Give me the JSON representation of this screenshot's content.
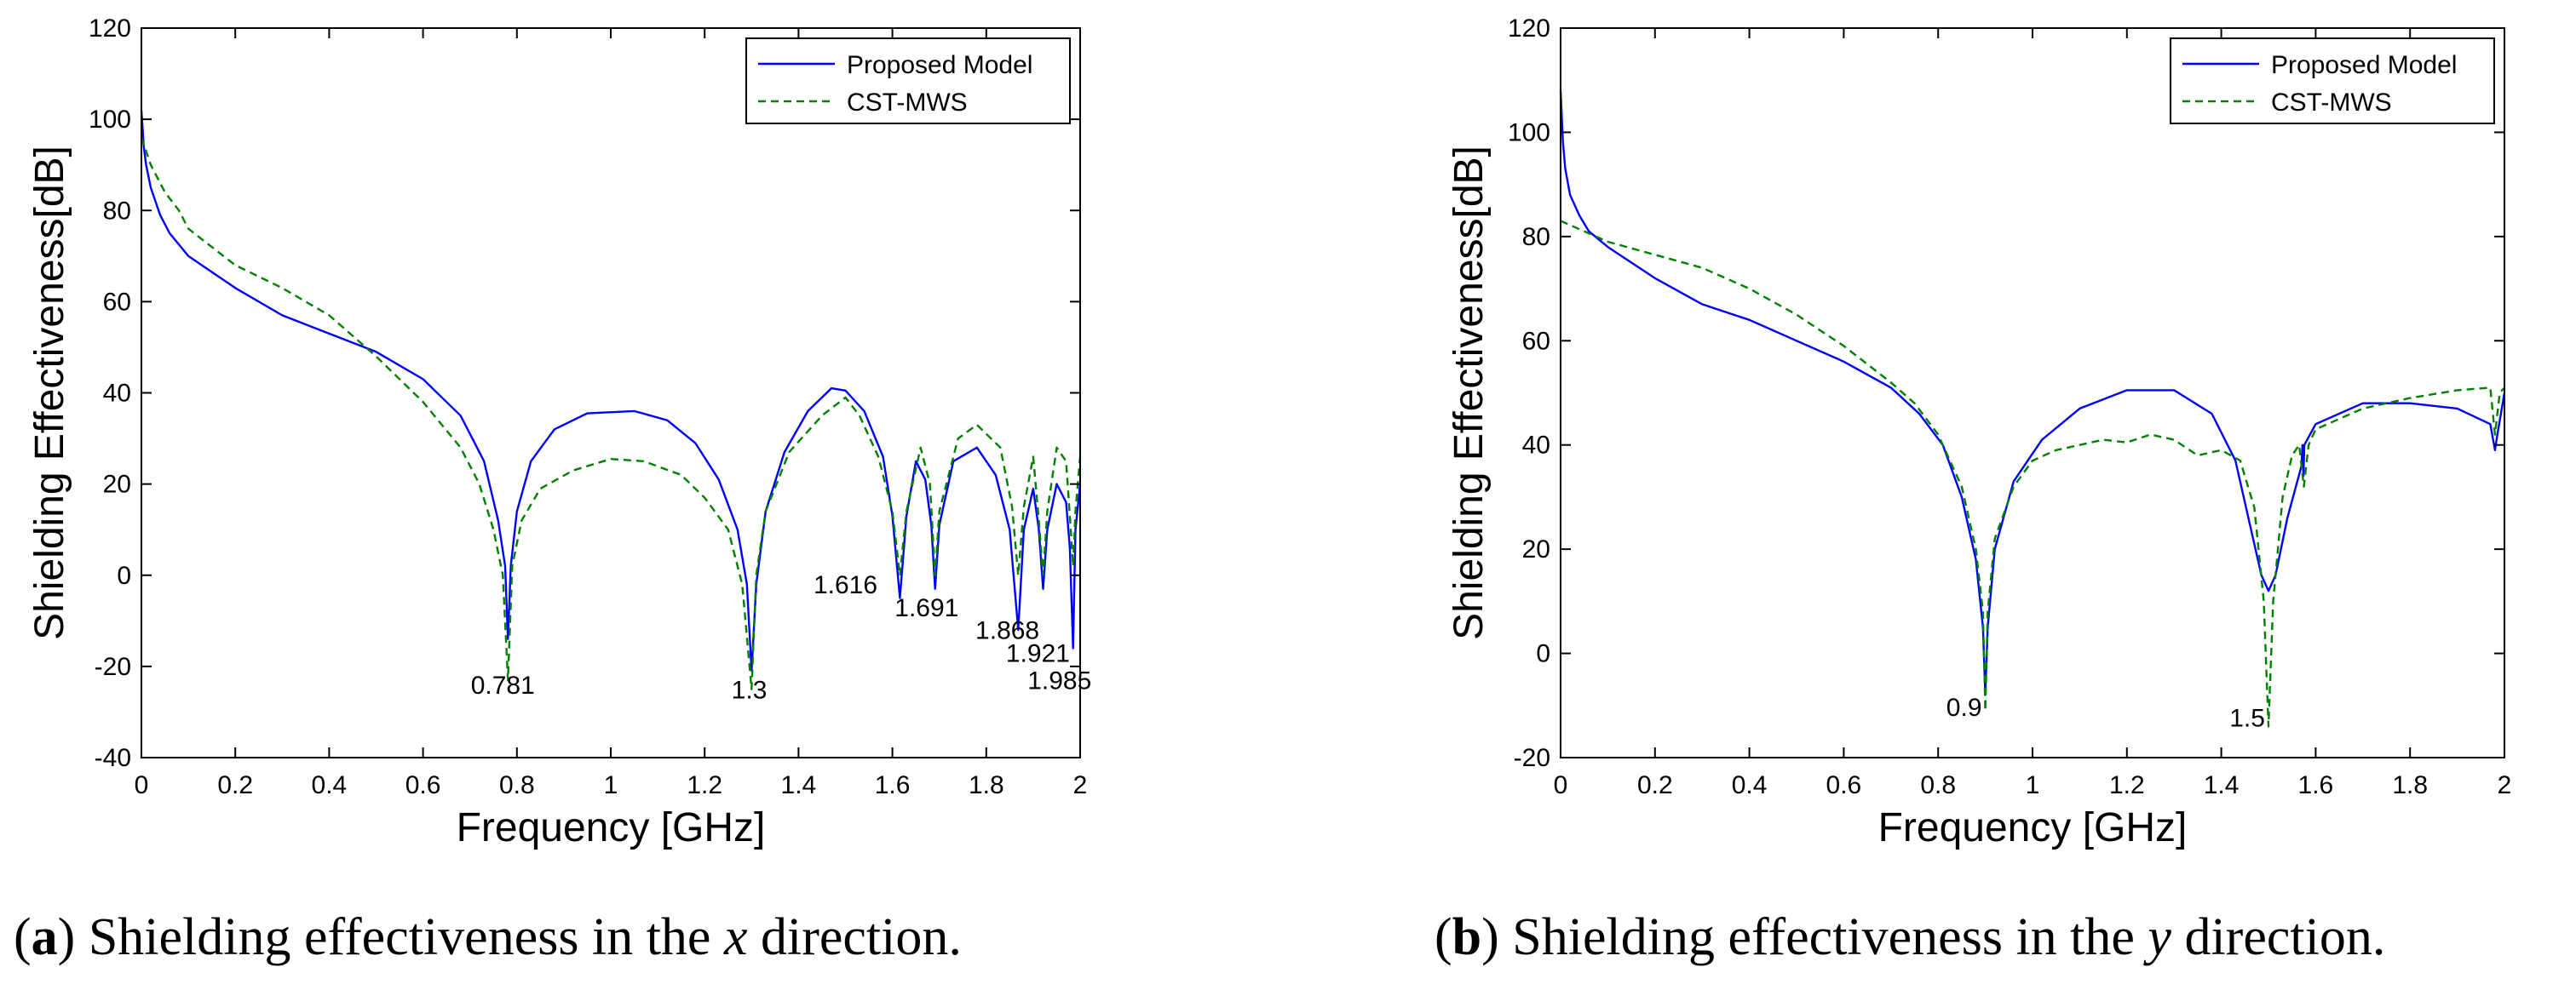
{
  "chart_data": [
    {
      "type": "line",
      "panel": "a",
      "xlabel": "Frequency [GHz]",
      "ylabel": "Shielding Effectiveness[dB]",
      "xlim": [
        0,
        2
      ],
      "ylim": [
        -40,
        120
      ],
      "xticks": [
        0,
        0.2,
        0.4,
        0.6,
        0.8,
        1,
        1.2,
        1.4,
        1.6,
        1.8,
        2
      ],
      "xtick_labels": [
        "0",
        "0.2",
        "0.4",
        "0.6",
        "0.8",
        "1",
        "1.2",
        "1.4",
        "1.6",
        "1.8",
        "2"
      ],
      "yticks": [
        -40,
        -20,
        0,
        20,
        40,
        60,
        80,
        100,
        120
      ],
      "ytick_labels": [
        "-40",
        "-20",
        "0",
        "20",
        "40",
        "60",
        "80",
        "100",
        "120"
      ],
      "legend_position": "top-right",
      "series": [
        {
          "name": "Proposed Model",
          "color": "#0000ff",
          "style": "solid",
          "points": [
            [
              0,
              102
            ],
            [
              0.005,
              94
            ],
            [
              0.01,
              90
            ],
            [
              0.02,
              85
            ],
            [
              0.04,
              79
            ],
            [
              0.06,
              75
            ],
            [
              0.1,
              70
            ],
            [
              0.2,
              63
            ],
            [
              0.3,
              57
            ],
            [
              0.4,
              53
            ],
            [
              0.5,
              49
            ],
            [
              0.6,
              43
            ],
            [
              0.68,
              35
            ],
            [
              0.73,
              25
            ],
            [
              0.76,
              12
            ],
            [
              0.775,
              2
            ],
            [
              0.781,
              -14
            ],
            [
              0.787,
              2
            ],
            [
              0.8,
              14
            ],
            [
              0.83,
              25
            ],
            [
              0.88,
              32
            ],
            [
              0.95,
              35.5
            ],
            [
              1.05,
              36
            ],
            [
              1.12,
              34
            ],
            [
              1.18,
              29
            ],
            [
              1.23,
              21
            ],
            [
              1.27,
              10
            ],
            [
              1.29,
              -2
            ],
            [
              1.3,
              -21
            ],
            [
              1.31,
              -2
            ],
            [
              1.33,
              14
            ],
            [
              1.37,
              27
            ],
            [
              1.42,
              36
            ],
            [
              1.47,
              41
            ],
            [
              1.5,
              40.5
            ],
            [
              1.54,
              36
            ],
            [
              1.58,
              26
            ],
            [
              1.6,
              13
            ],
            [
              1.616,
              -5
            ],
            [
              1.63,
              13
            ],
            [
              1.65,
              25
            ],
            [
              1.67,
              21
            ],
            [
              1.683,
              11
            ],
            [
              1.691,
              -3
            ],
            [
              1.7,
              11
            ],
            [
              1.73,
              25
            ],
            [
              1.78,
              28
            ],
            [
              1.82,
              22
            ],
            [
              1.85,
              10
            ],
            [
              1.868,
              -12
            ],
            [
              1.88,
              10
            ],
            [
              1.9,
              19
            ],
            [
              1.912,
              10
            ],
            [
              1.921,
              -3
            ],
            [
              1.93,
              10
            ],
            [
              1.95,
              20
            ],
            [
              1.97,
              16
            ],
            [
              1.978,
              6
            ],
            [
              1.985,
              -16
            ],
            [
              1.99,
              10
            ],
            [
              2,
              20
            ]
          ]
        },
        {
          "name": "CST-MWS",
          "color": "#008000",
          "style": "dashed",
          "points": [
            [
              0,
              96
            ],
            [
              0.02,
              90
            ],
            [
              0.05,
              84
            ],
            [
              0.08,
              80
            ],
            [
              0.1,
              76
            ],
            [
              0.15,
              72
            ],
            [
              0.2,
              68
            ],
            [
              0.3,
              63
            ],
            [
              0.4,
              57
            ],
            [
              0.5,
              48
            ],
            [
              0.6,
              38
            ],
            [
              0.68,
              28
            ],
            [
              0.72,
              20
            ],
            [
              0.75,
              10
            ],
            [
              0.77,
              0
            ],
            [
              0.781,
              -23
            ],
            [
              0.79,
              2
            ],
            [
              0.81,
              12
            ],
            [
              0.85,
              19
            ],
            [
              0.92,
              23
            ],
            [
              1.0,
              25.5
            ],
            [
              1.07,
              25
            ],
            [
              1.15,
              22
            ],
            [
              1.2,
              17
            ],
            [
              1.25,
              10
            ],
            [
              1.28,
              -2
            ],
            [
              1.3,
              -25
            ],
            [
              1.31,
              0
            ],
            [
              1.33,
              14
            ],
            [
              1.38,
              27
            ],
            [
              1.45,
              35
            ],
            [
              1.5,
              39
            ],
            [
              1.53,
              35
            ],
            [
              1.57,
              26
            ],
            [
              1.6,
              14
            ],
            [
              1.616,
              0
            ],
            [
              1.63,
              14
            ],
            [
              1.66,
              28
            ],
            [
              1.68,
              20
            ],
            [
              1.691,
              0
            ],
            [
              1.7,
              14
            ],
            [
              1.74,
              30
            ],
            [
              1.78,
              33
            ],
            [
              1.83,
              28
            ],
            [
              1.855,
              15
            ],
            [
              1.868,
              0
            ],
            [
              1.88,
              15
            ],
            [
              1.9,
              26
            ],
            [
              1.912,
              12
            ],
            [
              1.921,
              0
            ],
            [
              1.93,
              14
            ],
            [
              1.95,
              28
            ],
            [
              1.97,
              25
            ],
            [
              1.98,
              10
            ],
            [
              1.985,
              2
            ],
            [
              1.99,
              14
            ],
            [
              2,
              26
            ]
          ]
        }
      ],
      "annotations": [
        {
          "text": "0.781",
          "x": 0.77,
          "y": -26
        },
        {
          "text": "1.3",
          "x": 1.295,
          "y": -27
        },
        {
          "text": "1.616",
          "x": 1.5,
          "y": -4
        },
        {
          "text": "1.691",
          "x": 1.673,
          "y": -9
        },
        {
          "text": "1.868",
          "x": 1.845,
          "y": -14
        },
        {
          "text": "1.921",
          "x": 1.91,
          "y": -19
        },
        {
          "text": "1.985",
          "x": 1.956,
          "y": -25
        }
      ]
    },
    {
      "type": "line",
      "panel": "b",
      "xlabel": "Frequency [GHz]",
      "ylabel": "Shielding Effectiveness[dB]",
      "xlim": [
        0,
        2
      ],
      "ylim": [
        -20,
        120
      ],
      "xticks": [
        0,
        0.2,
        0.4,
        0.6,
        0.8,
        1,
        1.2,
        1.4,
        1.6,
        1.8,
        2
      ],
      "xtick_labels": [
        "0",
        "0.2",
        "0.4",
        "0.6",
        "0.8",
        "1",
        "1.2",
        "1.4",
        "1.6",
        "1.8",
        "2"
      ],
      "yticks": [
        -20,
        0,
        20,
        40,
        60,
        80,
        100,
        120
      ],
      "ytick_labels": [
        "-20",
        "0",
        "20",
        "40",
        "60",
        "80",
        "100",
        "120"
      ],
      "legend_position": "top-right",
      "series": [
        {
          "name": "Proposed Model",
          "color": "#0000ff",
          "style": "solid",
          "points": [
            [
              0,
              108
            ],
            [
              0.005,
              98
            ],
            [
              0.01,
              93
            ],
            [
              0.02,
              88
            ],
            [
              0.04,
              84
            ],
            [
              0.06,
              81
            ],
            [
              0.1,
              78
            ],
            [
              0.2,
              72
            ],
            [
              0.3,
              67
            ],
            [
              0.4,
              64
            ],
            [
              0.5,
              60
            ],
            [
              0.6,
              56
            ],
            [
              0.7,
              51
            ],
            [
              0.76,
              46
            ],
            [
              0.81,
              40
            ],
            [
              0.85,
              30
            ],
            [
              0.88,
              18
            ],
            [
              0.895,
              5
            ],
            [
              0.9,
              -8
            ],
            [
              0.905,
              5
            ],
            [
              0.92,
              20
            ],
            [
              0.96,
              33
            ],
            [
              1.02,
              41
            ],
            [
              1.1,
              47
            ],
            [
              1.2,
              50.5
            ],
            [
              1.3,
              50.5
            ],
            [
              1.38,
              46
            ],
            [
              1.43,
              37
            ],
            [
              1.46,
              25
            ],
            [
              1.485,
              15
            ],
            [
              1.5,
              12
            ],
            [
              1.515,
              15
            ],
            [
              1.54,
              26
            ],
            [
              1.57,
              36
            ],
            [
              1.572,
              40
            ],
            [
              1.574,
              34
            ],
            [
              1.576,
              40
            ],
            [
              1.6,
              44
            ],
            [
              1.7,
              48
            ],
            [
              1.8,
              48
            ],
            [
              1.9,
              47
            ],
            [
              1.97,
              44
            ],
            [
              1.98,
              39
            ],
            [
              1.985,
              42
            ],
            [
              2,
              50
            ]
          ]
        },
        {
          "name": "CST-MWS",
          "color": "#008000",
          "style": "dashed",
          "points": [
            [
              0,
              83
            ],
            [
              0.05,
              81
            ],
            [
              0.1,
              79
            ],
            [
              0.2,
              76.5
            ],
            [
              0.3,
              74
            ],
            [
              0.4,
              70
            ],
            [
              0.5,
              65
            ],
            [
              0.6,
              59
            ],
            [
              0.7,
              52
            ],
            [
              0.75,
              48
            ],
            [
              0.8,
              42
            ],
            [
              0.85,
              32
            ],
            [
              0.88,
              20
            ],
            [
              0.895,
              8
            ],
            [
              0.9,
              -11
            ],
            [
              0.905,
              8
            ],
            [
              0.92,
              22
            ],
            [
              0.96,
              32
            ],
            [
              1.0,
              37
            ],
            [
              1.05,
              39
            ],
            [
              1.1,
              40
            ],
            [
              1.15,
              41
            ],
            [
              1.2,
              40.5
            ],
            [
              1.25,
              42
            ],
            [
              1.3,
              41
            ],
            [
              1.35,
              38
            ],
            [
              1.4,
              39
            ],
            [
              1.44,
              37
            ],
            [
              1.47,
              28
            ],
            [
              1.49,
              10
            ],
            [
              1.5,
              -14
            ],
            [
              1.51,
              10
            ],
            [
              1.53,
              30
            ],
            [
              1.55,
              38
            ],
            [
              1.565,
              40
            ],
            [
              1.575,
              32
            ],
            [
              1.585,
              40
            ],
            [
              1.6,
              43
            ],
            [
              1.7,
              47
            ],
            [
              1.8,
              49
            ],
            [
              1.9,
              50.5
            ],
            [
              1.97,
              51
            ],
            [
              1.98,
              42
            ],
            [
              1.99,
              50
            ],
            [
              2,
              51
            ]
          ]
        }
      ],
      "annotations": [
        {
          "text": "0.9",
          "x": 0.855,
          "y": -12
        },
        {
          "text": "1.5",
          "x": 1.455,
          "y": -14
        }
      ]
    }
  ],
  "captions": {
    "a": {
      "label": "a",
      "text_before": " Shielding effectiveness in the ",
      "variable": "x",
      "text_after": " direction."
    },
    "b": {
      "label": "b",
      "text_before": " Shielding effectiveness in the ",
      "variable": "y",
      "text_after": " direction."
    }
  }
}
